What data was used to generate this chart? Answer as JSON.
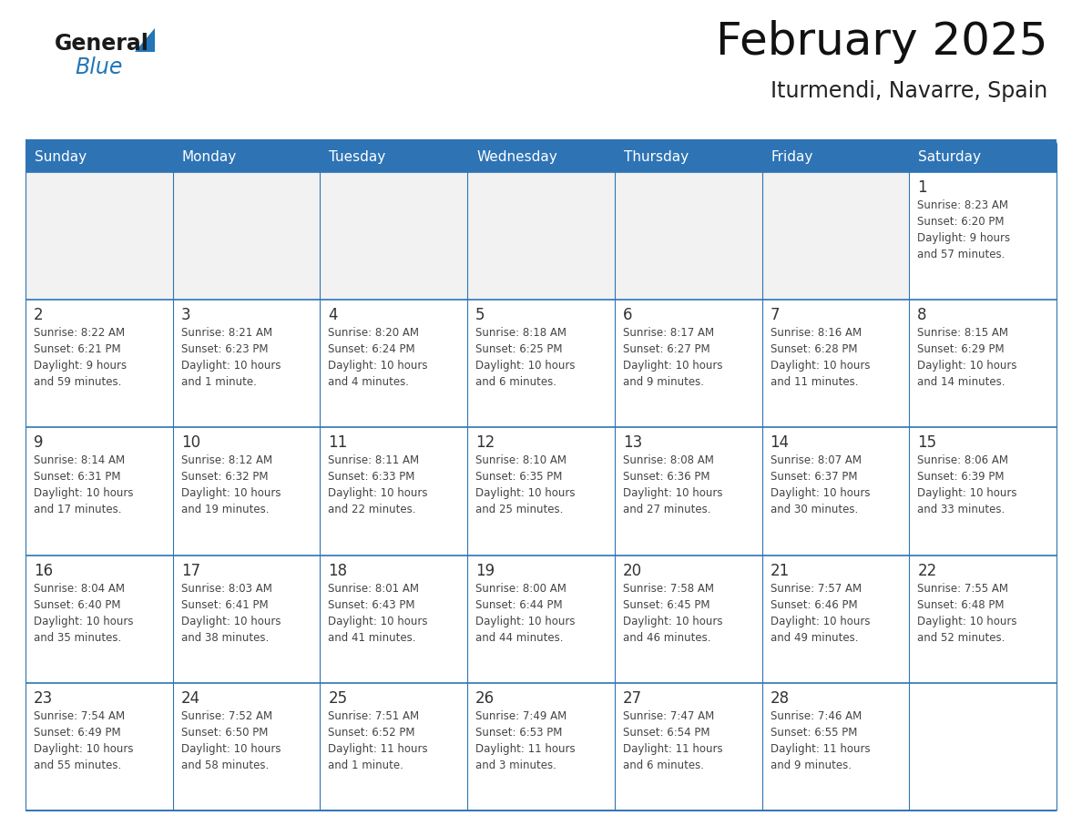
{
  "title": "February 2025",
  "subtitle": "Iturmendi, Navarre, Spain",
  "days_of_week": [
    "Sunday",
    "Monday",
    "Tuesday",
    "Wednesday",
    "Thursday",
    "Friday",
    "Saturday"
  ],
  "header_bg": "#2E74B5",
  "header_text": "#FFFFFF",
  "row_bg_white": "#FFFFFF",
  "row_bg_gray": "#F2F2F2",
  "border_color": "#2E74B5",
  "day_num_color": "#333333",
  "info_text_color": "#444444",
  "title_color": "#111111",
  "subtitle_color": "#222222",
  "logo_black": "#1a1a1a",
  "logo_blue": "#2376B7",
  "calendar_data": [
    [
      {
        "day": null,
        "info": null
      },
      {
        "day": null,
        "info": null
      },
      {
        "day": null,
        "info": null
      },
      {
        "day": null,
        "info": null
      },
      {
        "day": null,
        "info": null
      },
      {
        "day": null,
        "info": null
      },
      {
        "day": "1",
        "info": "Sunrise: 8:23 AM\nSunset: 6:20 PM\nDaylight: 9 hours\nand 57 minutes."
      }
    ],
    [
      {
        "day": "2",
        "info": "Sunrise: 8:22 AM\nSunset: 6:21 PM\nDaylight: 9 hours\nand 59 minutes."
      },
      {
        "day": "3",
        "info": "Sunrise: 8:21 AM\nSunset: 6:23 PM\nDaylight: 10 hours\nand 1 minute."
      },
      {
        "day": "4",
        "info": "Sunrise: 8:20 AM\nSunset: 6:24 PM\nDaylight: 10 hours\nand 4 minutes."
      },
      {
        "day": "5",
        "info": "Sunrise: 8:18 AM\nSunset: 6:25 PM\nDaylight: 10 hours\nand 6 minutes."
      },
      {
        "day": "6",
        "info": "Sunrise: 8:17 AM\nSunset: 6:27 PM\nDaylight: 10 hours\nand 9 minutes."
      },
      {
        "day": "7",
        "info": "Sunrise: 8:16 AM\nSunset: 6:28 PM\nDaylight: 10 hours\nand 11 minutes."
      },
      {
        "day": "8",
        "info": "Sunrise: 8:15 AM\nSunset: 6:29 PM\nDaylight: 10 hours\nand 14 minutes."
      }
    ],
    [
      {
        "day": "9",
        "info": "Sunrise: 8:14 AM\nSunset: 6:31 PM\nDaylight: 10 hours\nand 17 minutes."
      },
      {
        "day": "10",
        "info": "Sunrise: 8:12 AM\nSunset: 6:32 PM\nDaylight: 10 hours\nand 19 minutes."
      },
      {
        "day": "11",
        "info": "Sunrise: 8:11 AM\nSunset: 6:33 PM\nDaylight: 10 hours\nand 22 minutes."
      },
      {
        "day": "12",
        "info": "Sunrise: 8:10 AM\nSunset: 6:35 PM\nDaylight: 10 hours\nand 25 minutes."
      },
      {
        "day": "13",
        "info": "Sunrise: 8:08 AM\nSunset: 6:36 PM\nDaylight: 10 hours\nand 27 minutes."
      },
      {
        "day": "14",
        "info": "Sunrise: 8:07 AM\nSunset: 6:37 PM\nDaylight: 10 hours\nand 30 minutes."
      },
      {
        "day": "15",
        "info": "Sunrise: 8:06 AM\nSunset: 6:39 PM\nDaylight: 10 hours\nand 33 minutes."
      }
    ],
    [
      {
        "day": "16",
        "info": "Sunrise: 8:04 AM\nSunset: 6:40 PM\nDaylight: 10 hours\nand 35 minutes."
      },
      {
        "day": "17",
        "info": "Sunrise: 8:03 AM\nSunset: 6:41 PM\nDaylight: 10 hours\nand 38 minutes."
      },
      {
        "day": "18",
        "info": "Sunrise: 8:01 AM\nSunset: 6:43 PM\nDaylight: 10 hours\nand 41 minutes."
      },
      {
        "day": "19",
        "info": "Sunrise: 8:00 AM\nSunset: 6:44 PM\nDaylight: 10 hours\nand 44 minutes."
      },
      {
        "day": "20",
        "info": "Sunrise: 7:58 AM\nSunset: 6:45 PM\nDaylight: 10 hours\nand 46 minutes."
      },
      {
        "day": "21",
        "info": "Sunrise: 7:57 AM\nSunset: 6:46 PM\nDaylight: 10 hours\nand 49 minutes."
      },
      {
        "day": "22",
        "info": "Sunrise: 7:55 AM\nSunset: 6:48 PM\nDaylight: 10 hours\nand 52 minutes."
      }
    ],
    [
      {
        "day": "23",
        "info": "Sunrise: 7:54 AM\nSunset: 6:49 PM\nDaylight: 10 hours\nand 55 minutes."
      },
      {
        "day": "24",
        "info": "Sunrise: 7:52 AM\nSunset: 6:50 PM\nDaylight: 10 hours\nand 58 minutes."
      },
      {
        "day": "25",
        "info": "Sunrise: 7:51 AM\nSunset: 6:52 PM\nDaylight: 11 hours\nand 1 minute."
      },
      {
        "day": "26",
        "info": "Sunrise: 7:49 AM\nSunset: 6:53 PM\nDaylight: 11 hours\nand 3 minutes."
      },
      {
        "day": "27",
        "info": "Sunrise: 7:47 AM\nSunset: 6:54 PM\nDaylight: 11 hours\nand 6 minutes."
      },
      {
        "day": "28",
        "info": "Sunrise: 7:46 AM\nSunset: 6:55 PM\nDaylight: 11 hours\nand 9 minutes."
      },
      {
        "day": null,
        "info": null
      }
    ]
  ]
}
